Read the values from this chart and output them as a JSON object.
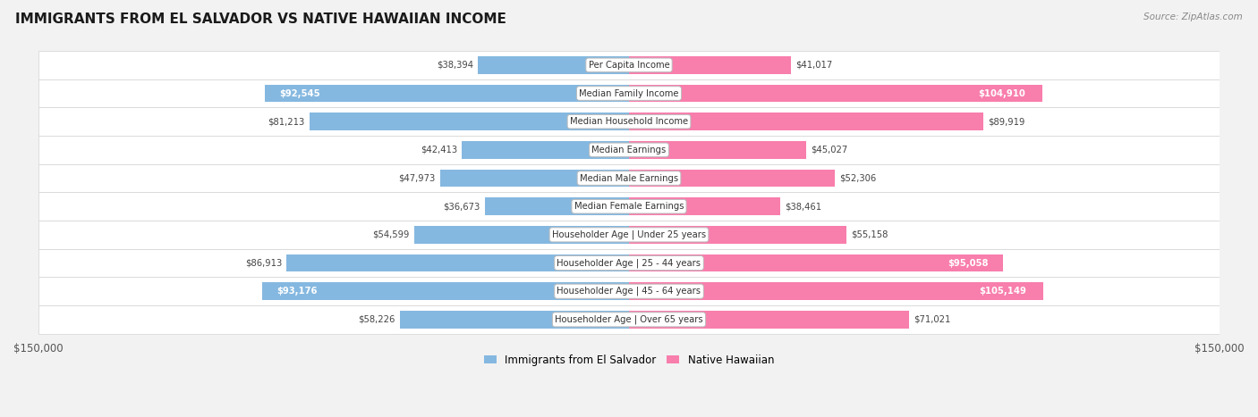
{
  "title": "IMMIGRANTS FROM EL SALVADOR VS NATIVE HAWAIIAN INCOME",
  "source": "Source: ZipAtlas.com",
  "categories": [
    "Per Capita Income",
    "Median Family Income",
    "Median Household Income",
    "Median Earnings",
    "Median Male Earnings",
    "Median Female Earnings",
    "Householder Age | Under 25 years",
    "Householder Age | 25 - 44 years",
    "Householder Age | 45 - 64 years",
    "Householder Age | Over 65 years"
  ],
  "salvador_values": [
    38394,
    92545,
    81213,
    42413,
    47973,
    36673,
    54599,
    86913,
    93176,
    58226
  ],
  "hawaiian_values": [
    41017,
    104910,
    89919,
    45027,
    52306,
    38461,
    55158,
    95058,
    105149,
    71021
  ],
  "salvador_labels": [
    "$38,394",
    "$92,545",
    "$81,213",
    "$42,413",
    "$47,973",
    "$36,673",
    "$54,599",
    "$86,913",
    "$93,176",
    "$58,226"
  ],
  "hawaiian_labels": [
    "$41,017",
    "$104,910",
    "$89,919",
    "$45,027",
    "$52,306",
    "$38,461",
    "$55,158",
    "$95,058",
    "$105,149",
    "$71,021"
  ],
  "salvador_color": "#85B8E0",
  "hawaiian_color": "#F87EAC",
  "salvador_label_inside": [
    false,
    true,
    false,
    false,
    false,
    false,
    false,
    false,
    true,
    false
  ],
  "hawaiian_label_inside": [
    false,
    true,
    false,
    false,
    false,
    false,
    false,
    true,
    true,
    false
  ],
  "max_val": 150000,
  "legend_salvador": "Immigrants from El Salvador",
  "legend_hawaiian": "Native Hawaiian",
  "background_color": "#f2f2f2",
  "row_bg_color": "#ffffff"
}
